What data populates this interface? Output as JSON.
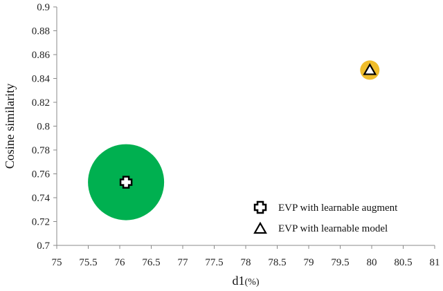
{
  "chart_data": {
    "type": "scatter",
    "title": "",
    "xlabel": "d1",
    "xlabel_unit": "(%)",
    "ylabel": "Cosine similarity",
    "xlim": [
      75,
      81
    ],
    "ylim": [
      0.7,
      0.9
    ],
    "x_ticks": [
      "75",
      "75.5",
      "76",
      "76.5",
      "77",
      "77.5",
      "78",
      "78.5",
      "79",
      "79.5",
      "80",
      "80.5",
      "81"
    ],
    "y_ticks": [
      "0.7",
      "0.72",
      "0.74",
      "0.76",
      "0.78",
      "0.8",
      "0.82",
      "0.84",
      "0.86",
      "0.88",
      "0.9"
    ],
    "grid": false,
    "legend_position": "bottom-right",
    "series": [
      {
        "name": "EVP with learnable augment",
        "marker": "cross",
        "bubble_color": "#00b050",
        "points": [
          {
            "x": 76.1,
            "y": 0.753
          }
        ]
      },
      {
        "name": "EVP with learnable model",
        "marker": "triangle",
        "bubble_color": "#f0bd2b",
        "points": [
          {
            "x": 79.97,
            "y": 0.847
          }
        ]
      }
    ]
  }
}
